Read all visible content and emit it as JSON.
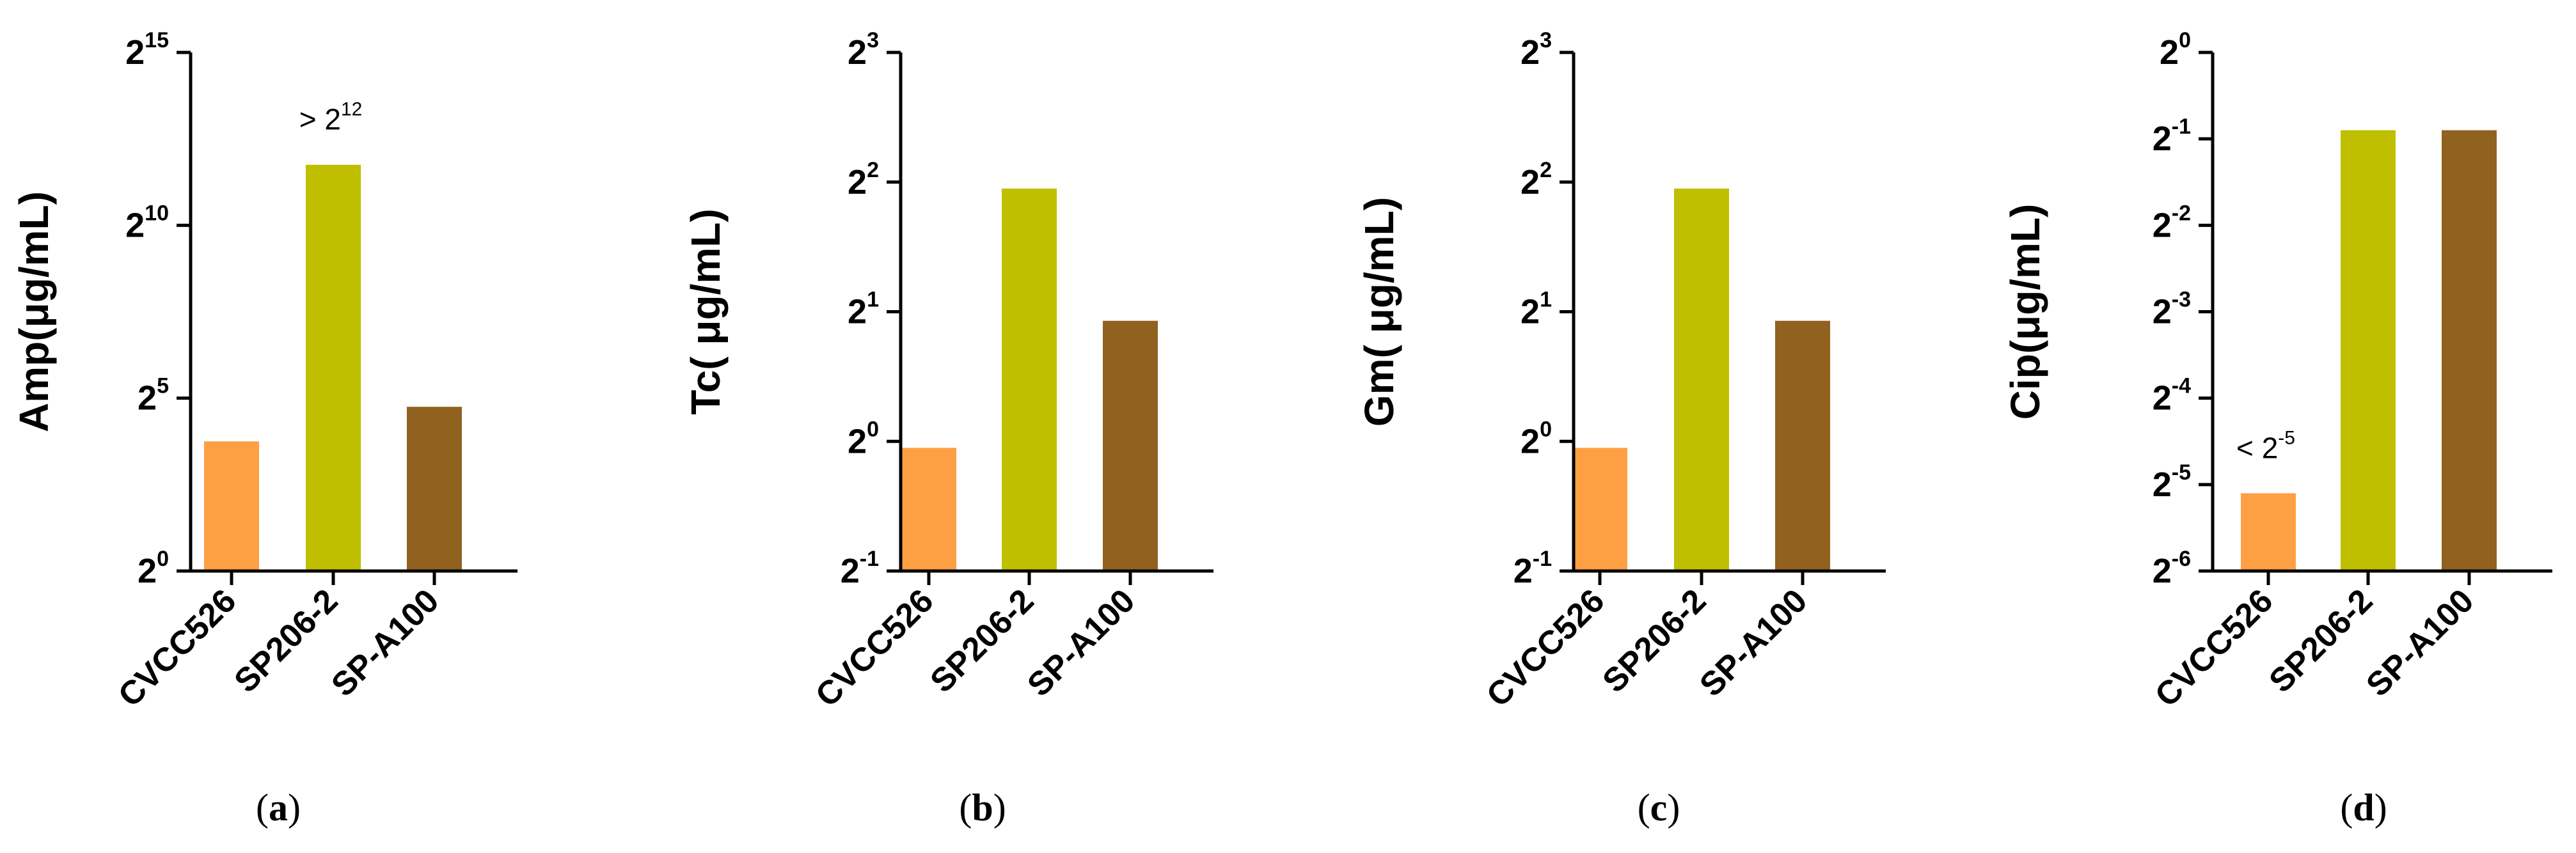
{
  "colors": {
    "CVCC526": "#fda043",
    "SP206-2": "#bfbf00",
    "SP-A100": "#916120",
    "axis": "#000000"
  },
  "chart_data": [
    {
      "type": "bar",
      "panel_label": "a",
      "ylabel": "Amp(μg/mL)",
      "yscale": "log2",
      "ylim_exponent": [
        0,
        15
      ],
      "y_tick_base": "2",
      "y_tick_exponents": [
        "0",
        "5",
        "10",
        "15"
      ],
      "categories": [
        "CVCC526",
        "SP206-2",
        "SP-A100"
      ],
      "values_log2": [
        3.75,
        11.75,
        4.75
      ],
      "annotations": [
        {
          "category": "SP206-2",
          "prefix": ">",
          "base": "2",
          "exponent": "12"
        }
      ]
    },
    {
      "type": "bar",
      "panel_label": "b",
      "ylabel": "Tc( μg/mL)",
      "yscale": "log2",
      "ylim_exponent": [
        -1,
        3
      ],
      "y_tick_base": "2",
      "y_tick_exponents": [
        "-1",
        "0",
        "1",
        "2",
        "3"
      ],
      "categories": [
        "CVCC526",
        "SP206-2",
        "SP-A100"
      ],
      "values_log2": [
        -0.05,
        1.95,
        0.93
      ],
      "annotations": []
    },
    {
      "type": "bar",
      "panel_label": "c",
      "ylabel": "Gm( μg/mL)",
      "yscale": "log2",
      "ylim_exponent": [
        -1,
        3
      ],
      "y_tick_base": "2",
      "y_tick_exponents": [
        "-1",
        "0",
        "1",
        "2",
        "3"
      ],
      "categories": [
        "CVCC526",
        "SP206-2",
        "SP-A100"
      ],
      "values_log2": [
        -0.05,
        1.95,
        0.93
      ],
      "annotations": []
    },
    {
      "type": "bar",
      "panel_label": "d",
      "ylabel": "Cip(μg/mL)",
      "yscale": "log2",
      "ylim_exponent": [
        -6,
        0
      ],
      "y_tick_base": "2",
      "y_tick_exponents": [
        "0",
        "-1",
        "-2",
        "-3",
        "-4",
        "-5",
        "-6"
      ],
      "categories": [
        "CVCC526",
        "SP206-2",
        "SP-A100"
      ],
      "values_log2": [
        -5.1,
        -0.9,
        -0.9
      ],
      "annotations": [
        {
          "category": "CVCC526",
          "prefix": "<",
          "base": "2",
          "exponent": "-5"
        }
      ]
    }
  ]
}
